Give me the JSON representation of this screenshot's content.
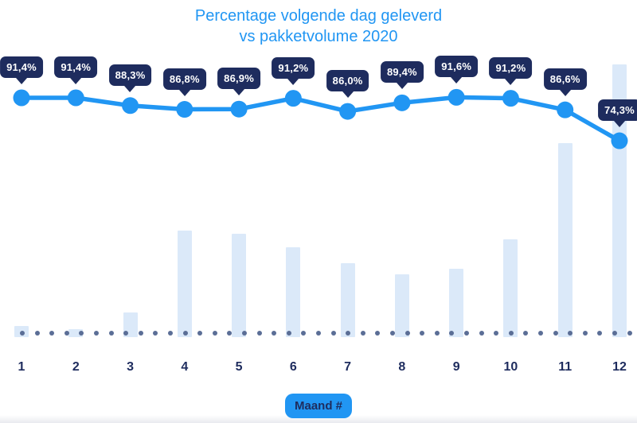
{
  "title": {
    "line1": "Percentage volgende dag geleverd",
    "line2": "vs pakketvolume 2020"
  },
  "x_axis": {
    "labels": [
      "1",
      "2",
      "3",
      "4",
      "5",
      "6",
      "7",
      "8",
      "9",
      "10",
      "11",
      "12"
    ],
    "axis_title": "Maand #"
  },
  "chart_data": {
    "type": "line",
    "title": "Percentage volgende dag geleverd vs pakketvolume 2020",
    "xlabel": "Maand #",
    "ylabel": "",
    "categories": [
      1,
      2,
      3,
      4,
      5,
      6,
      7,
      8,
      9,
      10,
      11,
      12
    ],
    "grid": false,
    "legend_position": "none",
    "annotations": {
      "dotted_baseline": true
    },
    "series": [
      {
        "name": "Percentage volgende dag geleverd",
        "type": "line",
        "unit": "%",
        "values": [
          91.4,
          91.4,
          88.3,
          86.8,
          86.9,
          91.2,
          86.0,
          89.4,
          91.6,
          91.2,
          86.6,
          74.3
        ],
        "data_labels": [
          "91,4%",
          "91,4%",
          "88,3%",
          "86,8%",
          "86,9%",
          "91,2%",
          "86,0%",
          "89,4%",
          "91,6%",
          "91,2%",
          "86,6%",
          "74,3%"
        ]
      },
      {
        "name": "Pakketvolume 2020",
        "type": "bar",
        "unit": "relative (% of max, estimated - no value axis shown)",
        "values": [
          4,
          3,
          9,
          39,
          38,
          33,
          27,
          23,
          25,
          36,
          71,
          100
        ]
      }
    ]
  },
  "colors": {
    "accent_blue": "#2196f3",
    "navy": "#1e2c5e",
    "bar_fill": "#dbe9f9",
    "baseline_dot": "#5b6e96",
    "tooltip_text": "#ffffff"
  }
}
